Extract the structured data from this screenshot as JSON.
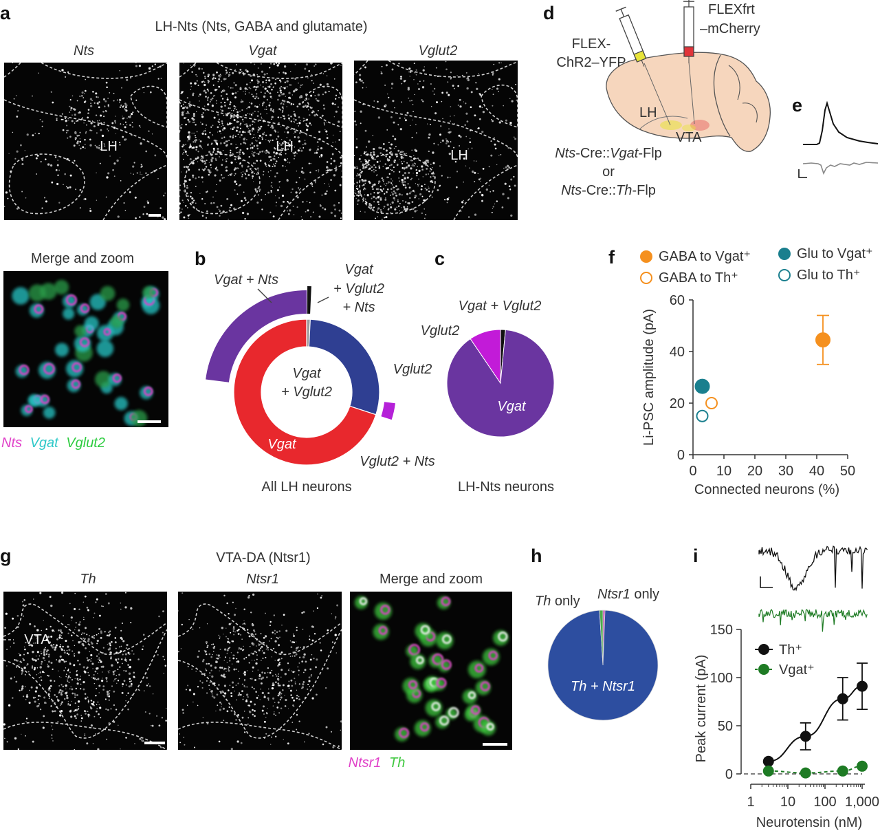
{
  "panel_letters": {
    "a": "a",
    "b": "b",
    "c": "c",
    "d": "d",
    "e": "e",
    "f": "f",
    "g": "g",
    "h": "h",
    "i": "i"
  },
  "panel_a": {
    "title": "LH-Nts (Nts, GABA and glutamate)",
    "images": [
      {
        "label": "Nts",
        "region": "LH"
      },
      {
        "label": "Vgat",
        "region": "LH"
      },
      {
        "label": "Vglut2",
        "region": "LH"
      }
    ],
    "merge_title": "Merge and zoom",
    "merge_legend": [
      {
        "text": "Nts",
        "color": "#e040c8"
      },
      {
        "text": "Vgat",
        "color": "#2ec8c8"
      },
      {
        "text": "Vglut2",
        "color": "#2ecc40"
      }
    ]
  },
  "panel_b": {
    "caption": "All LH neurons",
    "center_label_1": "Vgat",
    "center_label_2": "+ Vglut2",
    "labels": {
      "vgat_nts": "Vgat + Nts",
      "triple_1": "Vgat",
      "triple_2": "+ Vglut2",
      "triple_3": "+ Nts",
      "vglut2": "Vglut2",
      "vgat": "Vgat",
      "vglut2_nts": "Vglut2 + Nts"
    },
    "colors": {
      "vgat": "#e8282d",
      "vglut2": "#2f3f92",
      "both": "#9a9a9a",
      "vgat_nts": "#6a35a0",
      "vglut2_nts": "#b521d8",
      "triple": "#111111"
    }
  },
  "panel_c": {
    "caption": "LH-Nts neurons",
    "label_both": "Vgat + Vglut2",
    "label_vglut2": "Vglut2",
    "label_vgat": "Vgat",
    "colors": {
      "vgat": "#6a35a0",
      "vglut2": "#c21bd8",
      "both": "#111111"
    }
  },
  "panel_d": {
    "syringe_1": [
      "FLEX-",
      "ChR2–YFP"
    ],
    "syringe_2": [
      "FLEXfrt",
      "–mCherry"
    ],
    "region_1": "LH",
    "region_2": "VTA",
    "line_1a": "Nts",
    "line_1b": "-Cre::",
    "line_1c": "Vgat",
    "line_1d": "-Flp",
    "line_or": "or",
    "line_2a": "Nts",
    "line_2b": "-Cre::",
    "line_2c": "Th",
    "line_2d": "-Flp",
    "colors": {
      "brain": "#f6d6bd",
      "yfp": "#e8e43a",
      "mcherry": "#e0343a"
    }
  },
  "panel_f": {
    "legend": [
      {
        "text": "GABA to Vgat⁺",
        "color": "#f5901e",
        "filled": true
      },
      {
        "text": "Glu to Vgat⁺",
        "color": "#1a7f8e",
        "filled": true
      },
      {
        "text": "GABA to Th⁺",
        "color": "#f5901e",
        "filled": false
      },
      {
        "text": "Glu to Th⁺",
        "color": "#1a7f8e",
        "filled": false
      }
    ]
  },
  "panel_g": {
    "title": "VTA-DA (Ntsr1)",
    "images": [
      {
        "label": "Th",
        "region": "VTA"
      },
      {
        "label": "Ntsr1"
      },
      {
        "label": "Merge and zoom"
      }
    ],
    "merge_legend": [
      {
        "text": "Ntsr1",
        "color": "#e040c8"
      },
      {
        "text": "Th",
        "color": "#40c840"
      }
    ]
  },
  "panel_h": {
    "label_th_only": "Th",
    "label_th_only_suffix": " only",
    "label_ntsr1_only": "Ntsr1",
    "label_ntsr1_only_suffix": " only",
    "label_main": "Th + Ntsr1",
    "colors": {
      "main": "#2d4ea0",
      "th_only": "#4caa4c",
      "ntsr1_only": "#c040b0"
    }
  },
  "panel_i": {
    "legend": [
      {
        "text": "Th⁺",
        "color": "#111111"
      },
      {
        "text": "Vgat⁺",
        "color": "#1e7b24"
      }
    ],
    "trace_colors": {
      "th": "#111111",
      "vgat": "#1e7b24"
    }
  },
  "chart_data": [
    {
      "id": "b",
      "type": "pie",
      "title": "",
      "note": "donut chart of all LH neurons",
      "slices": [
        {
          "name": "Vgat",
          "value": 70.0
        },
        {
          "name": "Vglut2",
          "value": 29.2
        },
        {
          "name": "Vgat + Vglut2",
          "value": 0.8
        }
      ],
      "outer_segments": [
        {
          "name": "Vgat + Nts",
          "value": 23.0
        },
        {
          "name": "Vgat + Vglut2 + Nts",
          "value": 0.6
        },
        {
          "name": "Vglut2 + Nts",
          "value": 3.0
        }
      ],
      "caption": "All LH neurons"
    },
    {
      "id": "c",
      "type": "pie",
      "title": "",
      "slices": [
        {
          "name": "Vgat",
          "value": 89.0
        },
        {
          "name": "Vglut2",
          "value": 9.5
        },
        {
          "name": "Vgat + Vglut2",
          "value": 1.5
        }
      ],
      "caption": "LH-Nts neurons"
    },
    {
      "id": "f",
      "type": "scatter",
      "xlabel": "Connected neurons (%)",
      "ylabel": "Li-PSC amplitude (pA)",
      "xlim": [
        0,
        50
      ],
      "ylim": [
        0,
        60
      ],
      "xticks": [
        0,
        10,
        20,
        30,
        40,
        50
      ],
      "yticks": [
        0,
        20,
        40,
        60
      ],
      "series": [
        {
          "name": "GABA to Vgat⁺",
          "x": [
            42
          ],
          "y": [
            44.5
          ],
          "err": [
            9.5
          ]
        },
        {
          "name": "GABA to Th⁺",
          "x": [
            6
          ],
          "y": [
            20
          ],
          "err": [
            0
          ]
        },
        {
          "name": "Glu to Vgat⁺",
          "x": [
            3
          ],
          "y": [
            26.5
          ],
          "err": [
            0
          ]
        },
        {
          "name": "Glu to Th⁺",
          "x": [
            3
          ],
          "y": [
            15
          ],
          "err": [
            0
          ]
        }
      ]
    },
    {
      "id": "h",
      "type": "pie",
      "title": "",
      "slices": [
        {
          "name": "Th + Ntsr1",
          "value": 98.4
        },
        {
          "name": "Th only",
          "value": 1.0
        },
        {
          "name": "Ntsr1 only",
          "value": 0.6
        }
      ]
    },
    {
      "id": "i",
      "type": "line",
      "xlabel": "Neurotensin (nM)",
      "ylabel": "Peak current (pA)",
      "xscale": "log",
      "xlim": [
        1,
        1000
      ],
      "ylim": [
        0,
        150
      ],
      "xticks": [
        1,
        10,
        100,
        1000
      ],
      "xticklabels": [
        "1",
        "10",
        "100",
        "1,000"
      ],
      "yticks": [
        0,
        50,
        100,
        150
      ],
      "series": [
        {
          "name": "Th⁺",
          "x": [
            3,
            30,
            300,
            1000
          ],
          "y": [
            13,
            39,
            78,
            91
          ],
          "err": [
            0,
            14,
            22,
            24
          ]
        },
        {
          "name": "Vgat⁺",
          "x": [
            3,
            30,
            300,
            1000
          ],
          "y": [
            3,
            1,
            3,
            8
          ],
          "err": [
            0,
            0,
            0,
            0
          ]
        }
      ]
    }
  ]
}
